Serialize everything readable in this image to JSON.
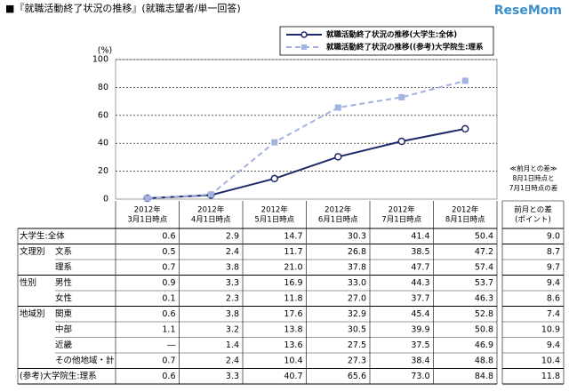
{
  "title": "■『就職活動終了状況の推移』(就職志望者/単一回答)",
  "logo": "ReseMom",
  "chart_data": {
    "type": "line",
    "y_unit": "(%)",
    "categories": [
      "2012年\n3月1日時点",
      "2012年\n4月1日時点",
      "2012年\n5月1日時点",
      "2012年\n6月1日時点",
      "2012年\n7月1日時点",
      "2012年\n8月1日時点"
    ],
    "series": [
      {
        "name": "就職活動終了状況の推移(大学生:全体)",
        "color": "#1f2a6b",
        "marker": "circle",
        "dashed": false,
        "values": [
          0.6,
          2.9,
          14.7,
          30.3,
          41.4,
          50.4
        ]
      },
      {
        "name": "就職活動終了状況の推移((参考)大学院生:理系",
        "color": "#a3b2e0",
        "marker": "square",
        "dashed": true,
        "values": [
          0.6,
          3.3,
          40.7,
          65.6,
          73.0,
          84.8
        ]
      }
    ],
    "ylim": [
      0,
      100
    ],
    "yticks": [
      0,
      20,
      40,
      60,
      80,
      100
    ],
    "grid": true
  },
  "note": [
    "≪前月との差≫",
    "8月1日時点と",
    "7月1日時点の差"
  ],
  "table": {
    "diff_header": "前月との差\n(ポイント)",
    "row_groups": [
      {
        "label": "大学生:全体",
        "rows": [
          {
            "values": [
              "0.6",
              "2.9",
              "14.7",
              "30.3",
              "41.4",
              "50.4"
            ],
            "diff": "9.0"
          }
        ]
      },
      {
        "label": "文理別",
        "rows": [
          {
            "label": "文系",
            "values": [
              "0.5",
              "2.4",
              "11.7",
              "26.8",
              "38.5",
              "47.2"
            ],
            "diff": "8.7"
          },
          {
            "label": "理系",
            "values": [
              "0.7",
              "3.8",
              "21.0",
              "37.8",
              "47.7",
              "57.4"
            ],
            "diff": "9.7"
          }
        ]
      },
      {
        "label": "性別",
        "rows": [
          {
            "label": "男性",
            "values": [
              "0.9",
              "3.3",
              "16.9",
              "33.0",
              "44.3",
              "53.7"
            ],
            "diff": "9.4"
          },
          {
            "label": "女性",
            "values": [
              "0.1",
              "2.3",
              "11.8",
              "27.0",
              "37.7",
              "46.3"
            ],
            "diff": "8.6"
          }
        ]
      },
      {
        "label": "地域別",
        "rows": [
          {
            "label": "関東",
            "values": [
              "0.6",
              "3.8",
              "17.6",
              "32.9",
              "45.4",
              "52.8"
            ],
            "diff": "7.4"
          },
          {
            "label": "中部",
            "values": [
              "1.1",
              "3.2",
              "13.8",
              "30.5",
              "39.9",
              "50.8"
            ],
            "diff": "10.9"
          },
          {
            "label": "近畿",
            "values": [
              "―",
              "1.4",
              "13.6",
              "27.5",
              "37.5",
              "46.9"
            ],
            "diff": "9.4"
          },
          {
            "label": "その他地域・計",
            "values": [
              "0.7",
              "2.4",
              "10.4",
              "27.3",
              "38.4",
              "48.8"
            ],
            "diff": "10.4"
          }
        ]
      },
      {
        "label": "(参考)大学院生:理系",
        "rows": [
          {
            "values": [
              "0.6",
              "3.3",
              "40.7",
              "65.6",
              "73.0",
              "84.8"
            ],
            "diff": "11.8"
          }
        ]
      }
    ]
  }
}
